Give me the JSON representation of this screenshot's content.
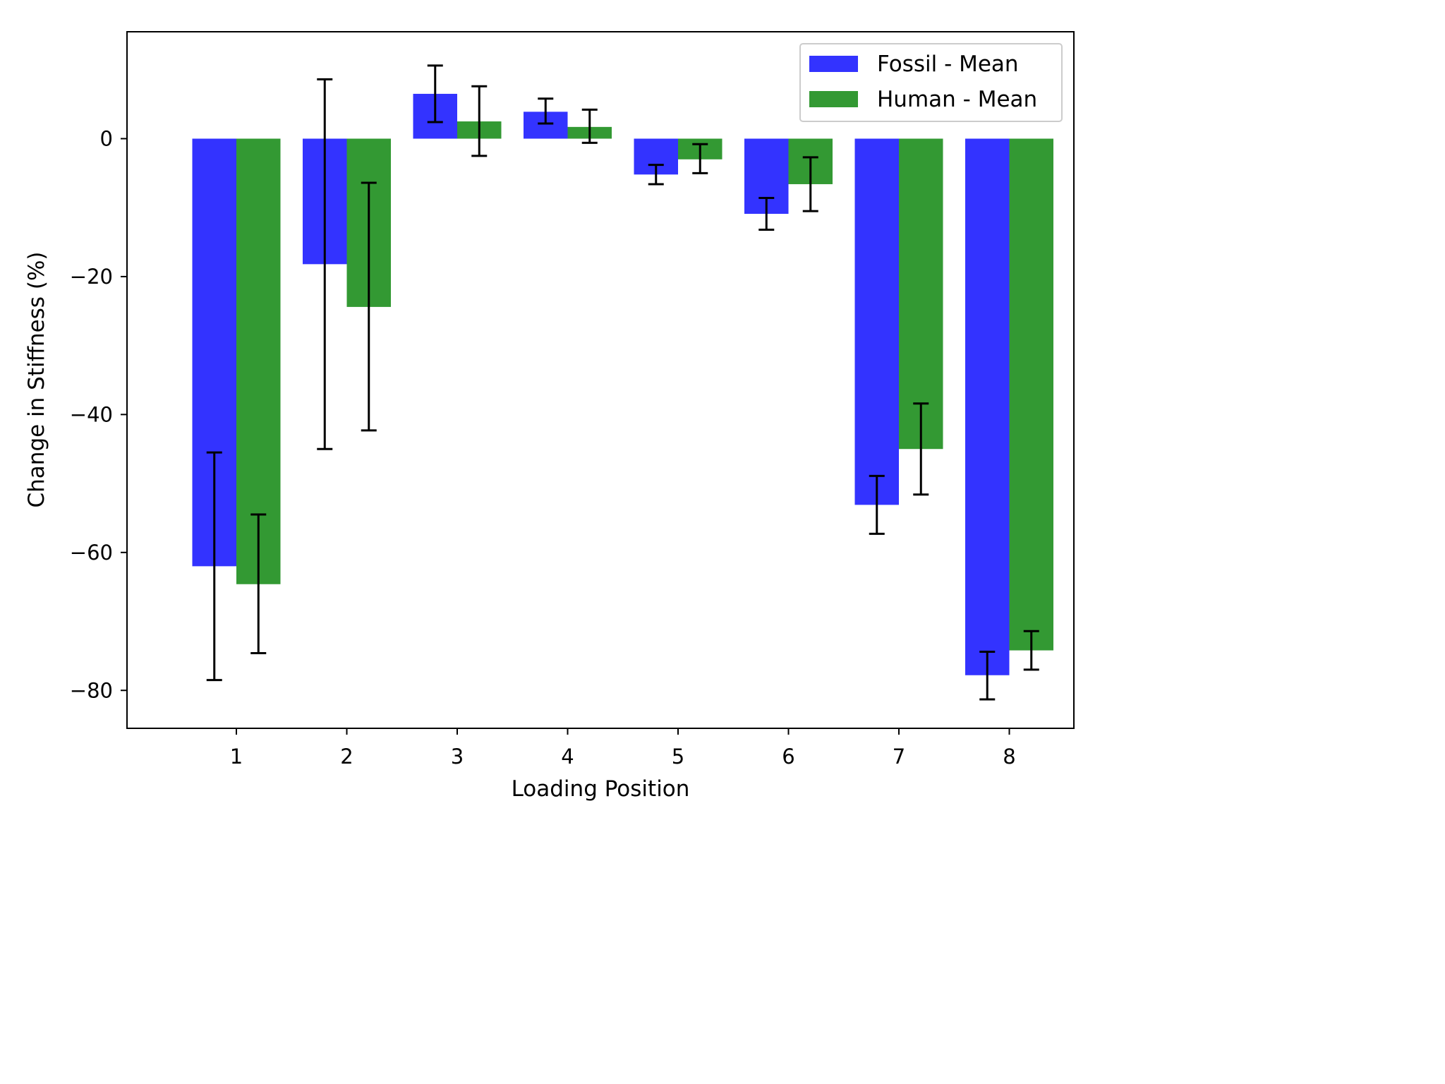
{
  "chart_data": {
    "type": "bar",
    "xlabel": "Loading Position",
    "ylabel": "Change in Stiffness (%)",
    "categories": [
      "1",
      "2",
      "3",
      "4",
      "5",
      "6",
      "7",
      "8"
    ],
    "yticks": [
      "0",
      "−20",
      "−40",
      "−60",
      "−80"
    ],
    "ylim": [
      -85.5,
      15.5
    ],
    "legend_position": "top-right",
    "grid": false,
    "series": [
      {
        "name": "Fossil - Mean",
        "color": "#3333ff",
        "values": [
          -62.0,
          -18.2,
          6.5,
          3.9,
          -5.2,
          -10.9,
          -53.1,
          -77.8
        ],
        "error_low": [
          -78.5,
          -45.0,
          2.4,
          2.2,
          -6.6,
          -13.2,
          -57.3,
          -81.3
        ],
        "error_high": [
          -45.5,
          8.6,
          10.6,
          5.8,
          -3.8,
          -8.6,
          -48.9,
          -74.4
        ]
      },
      {
        "name": "Human - Mean",
        "color": "#339933",
        "values": [
          -64.6,
          -24.4,
          2.5,
          1.7,
          -3.0,
          -6.6,
          -45.0,
          -74.2
        ],
        "error_low": [
          -74.6,
          -42.3,
          -2.5,
          -0.6,
          -5.0,
          -10.5,
          -51.6,
          -77.0
        ],
        "error_high": [
          -54.5,
          -6.4,
          7.6,
          4.2,
          -0.8,
          -2.7,
          -38.4,
          -71.4
        ]
      }
    ]
  }
}
